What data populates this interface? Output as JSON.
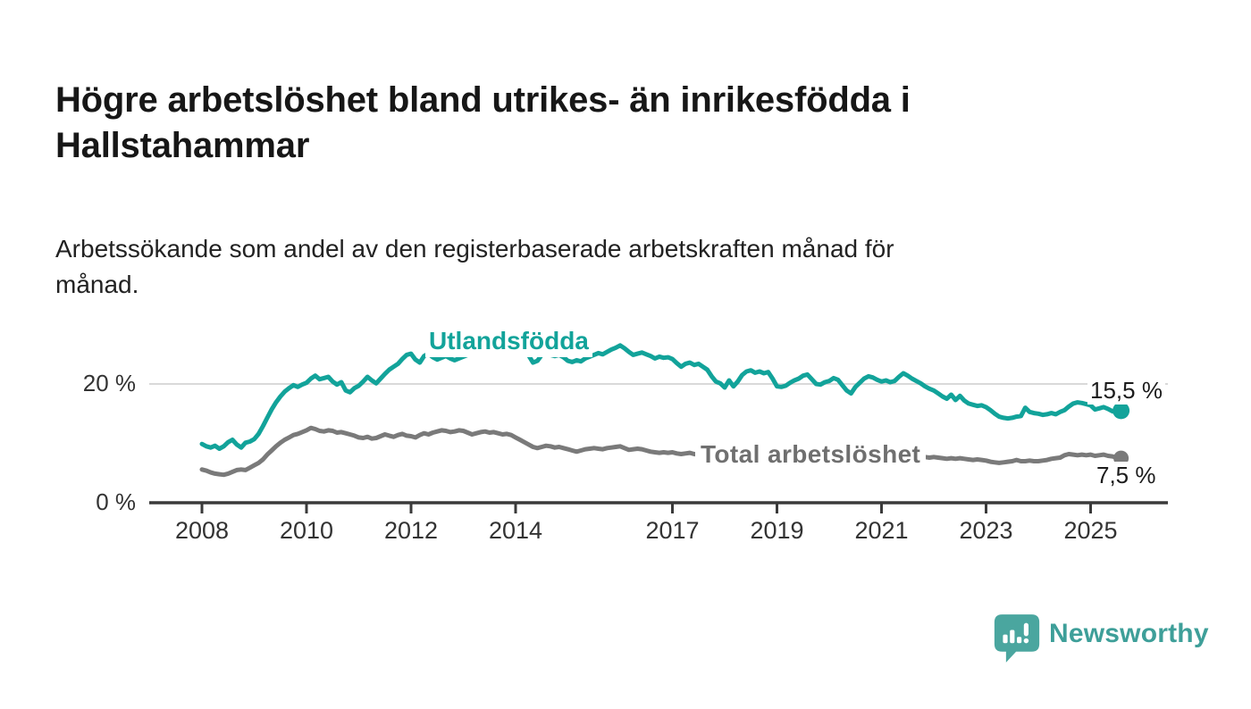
{
  "header": {
    "title": "Högre arbetslöshet bland utrikes- än inrikesfödda i Hallstahammar",
    "subtitle": "Arbetssökande som andel av den registerbaserade arbetskraften månad för månad."
  },
  "branding": {
    "name": "Newsworthy",
    "icon": "bar-chart-speech-bubble-icon",
    "icon_color": "#4aa69f",
    "text_color": "#3e9f99"
  },
  "colors": {
    "accent_teal": "#12a39a",
    "series_gray": "#7a7a7a",
    "axis": "#3a3a3a",
    "gridline": "#d9d9d9"
  },
  "chart_data": {
    "type": "line",
    "unit": "%",
    "frequency": "monthly",
    "x_axis": {
      "ticks": [
        2008,
        2010,
        2012,
        2014,
        2017,
        2019,
        2021,
        2023,
        2025
      ],
      "labels": [
        "2008",
        "2010",
        "2012",
        "2014",
        "2017",
        "2019",
        "2021",
        "2023",
        "2025"
      ],
      "range_years": [
        2007,
        2026.5
      ]
    },
    "y_axis": {
      "ticks": [
        {
          "value": 0,
          "label": "0 %"
        },
        {
          "value": 20,
          "label": "20 %"
        }
      ],
      "grid_values": [
        20
      ],
      "range": [
        0,
        28
      ]
    },
    "legend_position": "inline-labels",
    "grid": "horizontal-only",
    "series": [
      {
        "name": "Utlandsfödda",
        "color": "#12a39a",
        "start_year": 2008,
        "interval_months": 1,
        "end_label": "15,5 %",
        "end_value": 15.5,
        "values": [
          9.9,
          9.5,
          9.3,
          9.6,
          9.1,
          9.5,
          10.2,
          10.6,
          9.8,
          9.3,
          10.1,
          10.3,
          10.7,
          11.6,
          12.9,
          14.3,
          15.7,
          16.9,
          17.9,
          18.7,
          19.3,
          19.8,
          19.5,
          19.9,
          20.2,
          20.9,
          21.4,
          20.8,
          21.0,
          21.2,
          20.4,
          19.9,
          20.3,
          18.9,
          18.6,
          19.3,
          19.7,
          20.4,
          21.2,
          20.6,
          20.1,
          20.9,
          21.7,
          22.4,
          22.9,
          23.4,
          24.2,
          24.9,
          25.1,
          24.1,
          23.6,
          24.7,
          25.1,
          24.5,
          24.1,
          24.4,
          24.7,
          24.3,
          24.0,
          24.3,
          24.6,
          24.9,
          25.2,
          25.0,
          25.4,
          25.1,
          25.3,
          25.6,
          25.2,
          25.0,
          25.3,
          25.1,
          25.4,
          25.6,
          25.2,
          24.8,
          23.6,
          23.9,
          24.9,
          25.2,
          24.9,
          24.7,
          24.9,
          24.5,
          23.9,
          23.7,
          24.0,
          23.8,
          24.3,
          24.6,
          24.9,
          25.2,
          25.0,
          25.4,
          25.8,
          26.1,
          26.5,
          26.0,
          25.4,
          24.9,
          25.1,
          25.3,
          25.0,
          24.7,
          24.3,
          24.6,
          24.4,
          24.5,
          24.2,
          23.5,
          22.9,
          23.4,
          23.6,
          23.2,
          23.4,
          22.9,
          22.4,
          21.3,
          20.4,
          20.1,
          19.4,
          20.6,
          19.6,
          20.4,
          21.5,
          22.1,
          22.3,
          21.9,
          22.1,
          21.8,
          22.0,
          20.9,
          19.6,
          19.5,
          19.7,
          20.2,
          20.6,
          20.9,
          21.4,
          21.6,
          20.8,
          20.0,
          19.9,
          20.3,
          20.5,
          21.0,
          20.7,
          19.8,
          18.9,
          18.4,
          19.5,
          20.2,
          20.9,
          21.3,
          21.1,
          20.7,
          20.4,
          20.6,
          20.3,
          20.5,
          21.2,
          21.8,
          21.4,
          20.9,
          20.5,
          20.1,
          19.6,
          19.2,
          18.9,
          18.4,
          17.9,
          17.5,
          18.2,
          17.3,
          18.0,
          17.2,
          16.7,
          16.5,
          16.3,
          16.4,
          16.1,
          15.6,
          15.0,
          14.5,
          14.3,
          14.2,
          14.3,
          14.5,
          14.6,
          16.0,
          15.3,
          15.1,
          15.0,
          14.8,
          14.9,
          15.1,
          14.9,
          15.3,
          15.6,
          16.2,
          16.7,
          16.9,
          16.8,
          16.6,
          16.4,
          15.7,
          15.9,
          16.1,
          15.8,
          15.4,
          15.3,
          15.5
        ]
      },
      {
        "name": "Total arbetslöshet",
        "color": "#7a7a7a",
        "start_year": 2008,
        "interval_months": 1,
        "end_label": "7,5 %",
        "end_value": 7.5,
        "values": [
          5.6,
          5.4,
          5.1,
          4.9,
          4.8,
          4.7,
          4.9,
          5.2,
          5.5,
          5.6,
          5.5,
          5.9,
          6.3,
          6.7,
          7.3,
          8.1,
          8.8,
          9.5,
          10.1,
          10.6,
          11.0,
          11.4,
          11.6,
          11.9,
          12.2,
          12.6,
          12.4,
          12.1,
          12.0,
          12.2,
          12.1,
          11.8,
          11.9,
          11.7,
          11.5,
          11.3,
          11.0,
          10.9,
          11.1,
          10.8,
          10.9,
          11.2,
          11.5,
          11.3,
          11.1,
          11.4,
          11.6,
          11.3,
          11.2,
          11.0,
          11.4,
          11.7,
          11.5,
          11.8,
          12.0,
          12.2,
          12.1,
          11.9,
          12.0,
          12.2,
          12.1,
          11.8,
          11.5,
          11.7,
          11.9,
          12.0,
          11.8,
          11.9,
          11.7,
          11.5,
          11.6,
          11.4,
          11.0,
          10.6,
          10.2,
          9.8,
          9.4,
          9.2,
          9.4,
          9.6,
          9.5,
          9.3,
          9.4,
          9.2,
          9.0,
          8.8,
          8.6,
          8.8,
          9.0,
          9.1,
          9.2,
          9.1,
          9.0,
          9.2,
          9.3,
          9.4,
          9.5,
          9.2,
          8.9,
          9.0,
          9.1,
          9.0,
          8.8,
          8.6,
          8.5,
          8.4,
          8.5,
          8.4,
          8.5,
          8.3,
          8.2,
          8.3,
          8.4,
          8.2,
          8.1,
          8.0,
          8.1,
          8.0,
          7.9,
          7.8,
          7.8,
          7.9,
          7.7,
          7.8,
          7.9,
          7.8,
          7.7,
          7.8,
          7.7,
          7.6,
          7.7,
          7.6,
          7.5,
          7.6,
          7.5,
          7.6,
          7.7,
          7.6,
          7.7,
          7.8,
          7.7,
          7.6,
          7.7,
          7.8,
          7.9,
          8.0,
          8.2,
          8.5,
          8.7,
          8.8,
          8.7,
          8.6,
          8.5,
          8.4,
          8.3,
          8.2,
          8.1,
          8.0,
          7.9,
          7.8,
          7.9,
          7.8,
          7.7,
          7.8,
          7.7,
          7.6,
          7.7,
          7.6,
          7.7,
          7.6,
          7.5,
          7.4,
          7.5,
          7.4,
          7.5,
          7.4,
          7.3,
          7.2,
          7.3,
          7.2,
          7.1,
          6.9,
          6.8,
          6.7,
          6.8,
          6.9,
          7.0,
          7.2,
          7.0,
          7.0,
          7.1,
          7.0,
          7.0,
          7.1,
          7.2,
          7.4,
          7.5,
          7.6,
          8.0,
          8.2,
          8.1,
          8.0,
          8.1,
          8.0,
          8.1,
          7.9,
          8.0,
          8.1,
          7.9,
          7.8,
          7.6,
          7.5
        ]
      }
    ]
  }
}
